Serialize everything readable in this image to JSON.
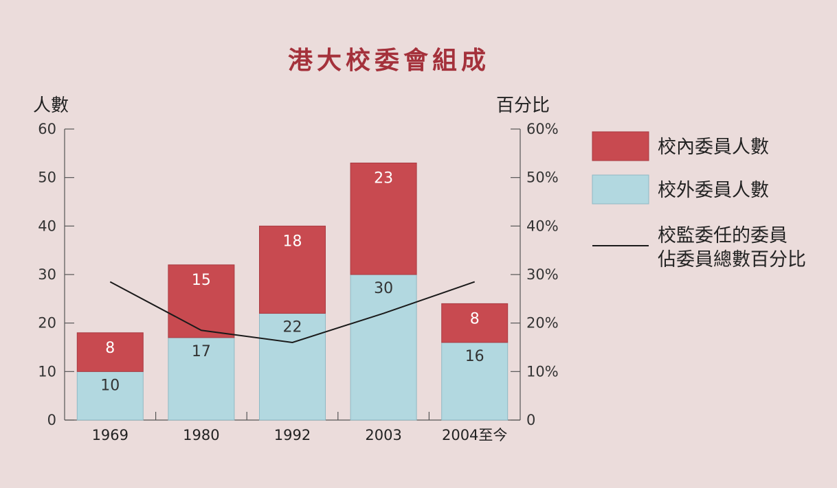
{
  "chart_data": {
    "type": "bar",
    "stacked": true,
    "title": "港大校委會組成",
    "ylabel_left": "人數",
    "ylabel_right": "百分比",
    "categories": [
      "1969",
      "1980",
      "1992",
      "2003",
      "2004至今"
    ],
    "series": [
      {
        "name": "校外委員人數",
        "color": "#b2d8e0",
        "values": [
          10,
          17,
          22,
          30,
          16
        ]
      },
      {
        "name": "校內委員人數",
        "color": "#c84a50",
        "values": [
          8,
          15,
          18,
          23,
          8
        ]
      }
    ],
    "line_series": {
      "name": "校監委任的委員佔委員總數百分比",
      "color": "#1a1a1a",
      "axis": "right",
      "values": [
        28.5,
        18.5,
        16,
        22,
        28.5
      ]
    },
    "ylim_left": [
      0,
      60
    ],
    "yticks_left": [
      "0",
      "10",
      "20",
      "30",
      "40",
      "50",
      "60"
    ],
    "ylim_right": [
      0,
      60
    ],
    "yticks_right": [
      "0",
      "10%",
      "20%",
      "30%",
      "40%",
      "50%",
      "60%"
    ],
    "legend_position": "right",
    "legend": [
      {
        "type": "swatch",
        "color": "#c84a50",
        "lines": [
          "校內委員人數"
        ]
      },
      {
        "type": "swatch",
        "color": "#b2d8e0",
        "lines": [
          "校外委員人數"
        ]
      },
      {
        "type": "line",
        "color": "#1a1a1a",
        "lines": [
          "校監委任的委員",
          "佔委員總數百分比"
        ]
      }
    ],
    "colors": {
      "title": "#a4313b",
      "background": "#ebdcdb",
      "axis": "#555555"
    }
  }
}
